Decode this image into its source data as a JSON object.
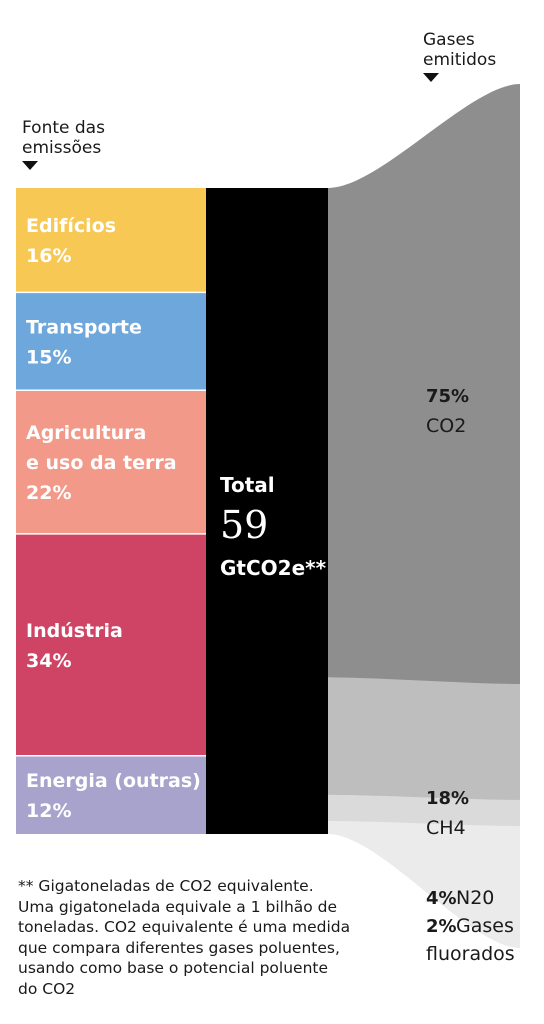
{
  "headers": {
    "source": [
      "Fonte das",
      "emissões"
    ],
    "gases": [
      "Gases",
      "emitidos"
    ]
  },
  "chart_data": {
    "type": "sankey",
    "sources": [
      {
        "label_lines": [
          "Edifícios"
        ],
        "value": "16%",
        "percent": 16,
        "color": "#f8c854"
      },
      {
        "label_lines": [
          "Transporte"
        ],
        "value": "15%",
        "percent": 15,
        "color": "#6ea7dc"
      },
      {
        "label_lines": [
          "Agricultura",
          "e uso da terra"
        ],
        "value": "22%",
        "percent": 22,
        "color": "#f2998a"
      },
      {
        "label_lines": [
          "Indústria"
        ],
        "value": "34%",
        "percent": 34,
        "color": "#cf4465"
      },
      {
        "label_lines": [
          "Energia (outras)"
        ],
        "value": "12%",
        "percent": 12,
        "color": "#a8a3cc"
      }
    ],
    "total": {
      "label": "Total",
      "value": "59",
      "unit": "GtCO2e**",
      "color": "#000000"
    },
    "gases": [
      {
        "pct": "75%",
        "name": "CO2",
        "percent": 75,
        "color": "#8e8e8e"
      },
      {
        "pct": "18%",
        "name": "CH4",
        "percent": 18,
        "color": "#bebebe"
      },
      {
        "pct": "4%",
        "name": "N20",
        "percent": 4,
        "color": "#dadada"
      },
      {
        "pct": "2%",
        "name": "Gases fluorados",
        "percent": 2,
        "color": "#ebebeb"
      }
    ]
  },
  "footnote": "** Gigatoneladas de CO2 equivalente.\nUma gigatonelada equivale a 1 bilhão de\ntoneladas. CO2 equivalente é uma medida\nque compara diferentes gases poluentes,\nusando como base o potencial poluente\ndo CO2"
}
